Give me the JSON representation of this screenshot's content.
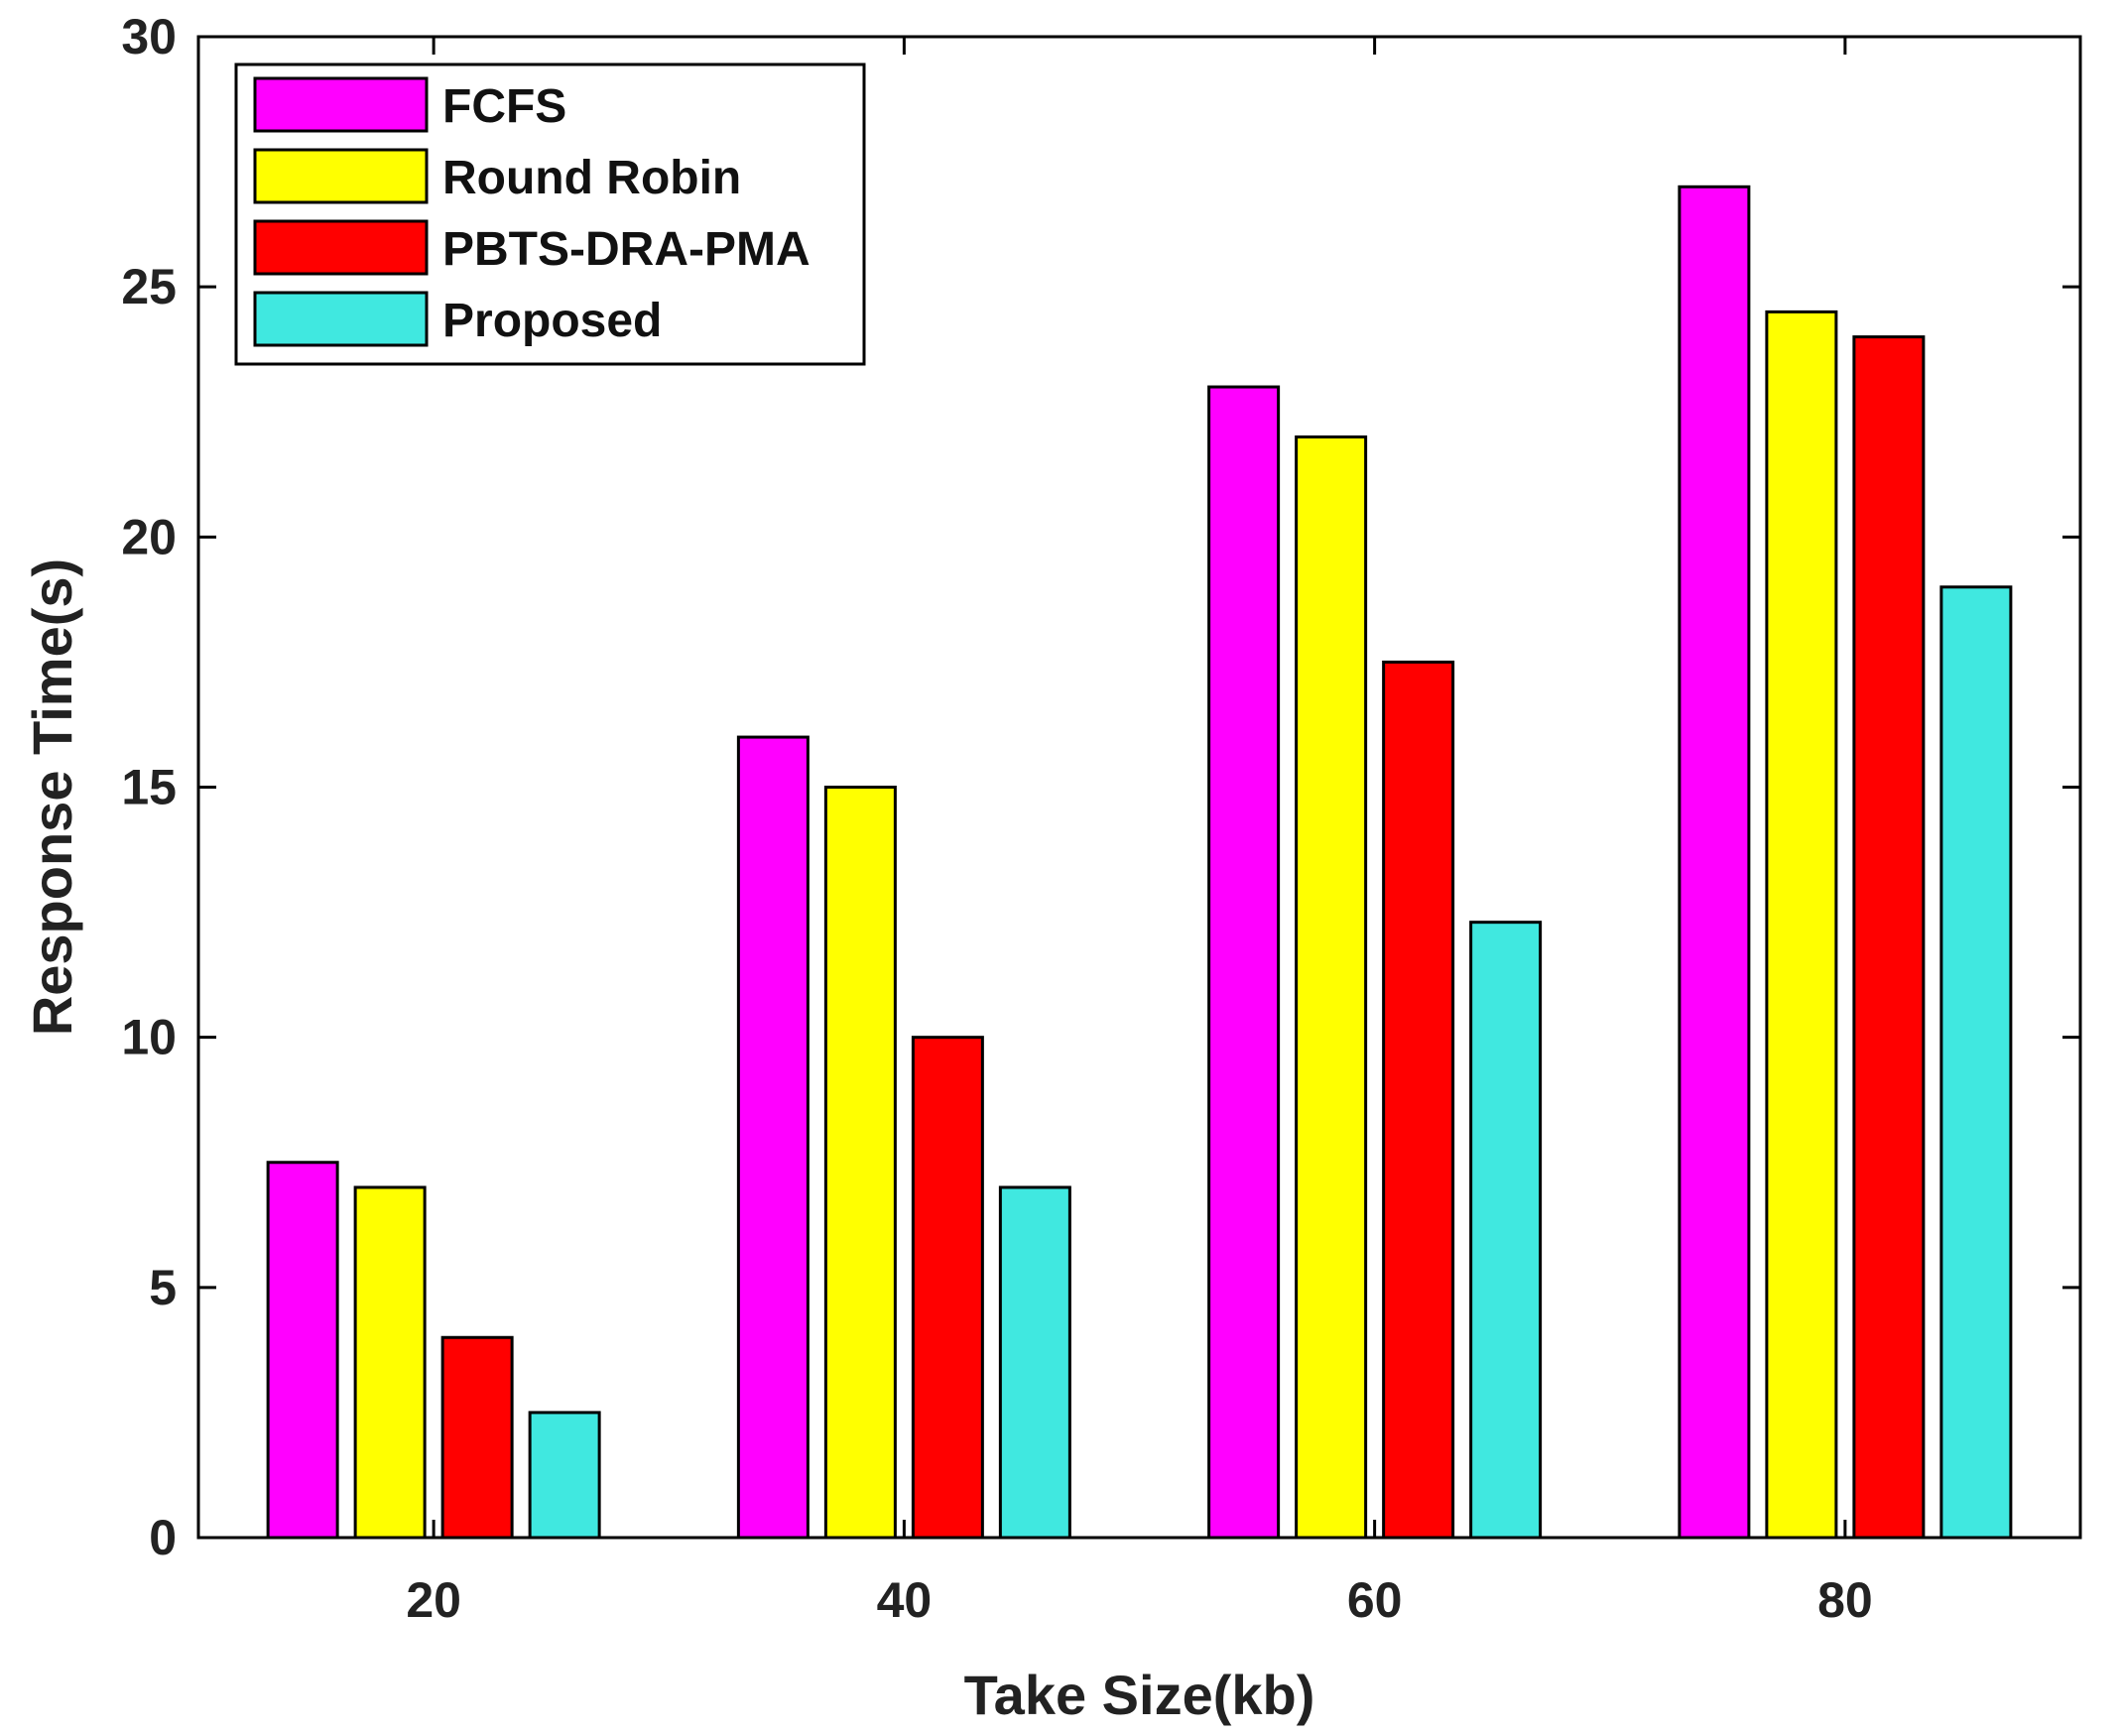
{
  "chart_data": {
    "type": "bar",
    "title": "",
    "xlabel": "Take Size(kb)",
    "ylabel": "Response Time(s)",
    "categories": [
      "20",
      "40",
      "60",
      "80"
    ],
    "ylim": [
      0,
      30
    ],
    "yticks": [
      0,
      5,
      10,
      15,
      20,
      25,
      30
    ],
    "grid": false,
    "legend_position": "top-left",
    "series": [
      {
        "name": "FCFS",
        "color": "#ff00ff",
        "values": [
          7.5,
          16,
          23,
          27
        ]
      },
      {
        "name": "Round Robin",
        "color": "#ffff00",
        "values": [
          7,
          15,
          22,
          24.5
        ]
      },
      {
        "name": "PBTS-DRA-PMA",
        "color": "#ff0000",
        "values": [
          4,
          10,
          17.5,
          24
        ]
      },
      {
        "name": "Proposed",
        "color": "#40e8e0",
        "values": [
          2.5,
          7,
          12.3,
          19
        ]
      }
    ]
  }
}
